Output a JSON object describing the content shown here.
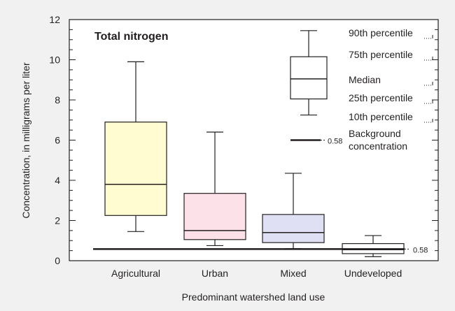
{
  "chart_data": {
    "type": "box",
    "title": "Total nitrogen",
    "xlabel": "Predominant watershed land use",
    "ylabel": "Concentration, in milligrams per liter",
    "ylim": [
      0,
      12
    ],
    "yticks": [
      0,
      2,
      4,
      6,
      8,
      10,
      12
    ],
    "grid": false,
    "categories": [
      "Agricultural",
      "Urban",
      "Mixed",
      "Undeveloped"
    ],
    "boxes": [
      {
        "category": "Agricultural",
        "p10": 1.45,
        "p25": 2.25,
        "median": 3.8,
        "p75": 6.9,
        "p90": 9.9,
        "color": "#fffcd2"
      },
      {
        "category": "Urban",
        "p10": 0.75,
        "p25": 1.05,
        "median": 1.5,
        "p75": 3.35,
        "p90": 6.4,
        "color": "#fde1e8"
      },
      {
        "category": "Mixed",
        "p10": 0.6,
        "p25": 0.9,
        "median": 1.4,
        "p75": 2.3,
        "p90": 4.35,
        "color": "#dfe0f4"
      },
      {
        "category": "Undeveloped",
        "p10": 0.2,
        "p25": 0.35,
        "median": 0.55,
        "p75": 0.85,
        "p90": 1.25,
        "color": "#ffffff"
      }
    ],
    "background_concentration": {
      "value": 0.58,
      "label": "0.58"
    },
    "legend": {
      "labels": [
        "90th percentile",
        "75th percentile",
        "Median",
        "25th percentile",
        "10th percentile"
      ],
      "background_label_line1": "Background",
      "background_label_line2": "concentration",
      "background_value_label": "0.58",
      "example_box": {
        "p10": 7.25,
        "p25": 8.05,
        "median": 9.05,
        "p75": 10.15,
        "p90": 11.45
      },
      "background_sample_y": 6.0
    }
  }
}
